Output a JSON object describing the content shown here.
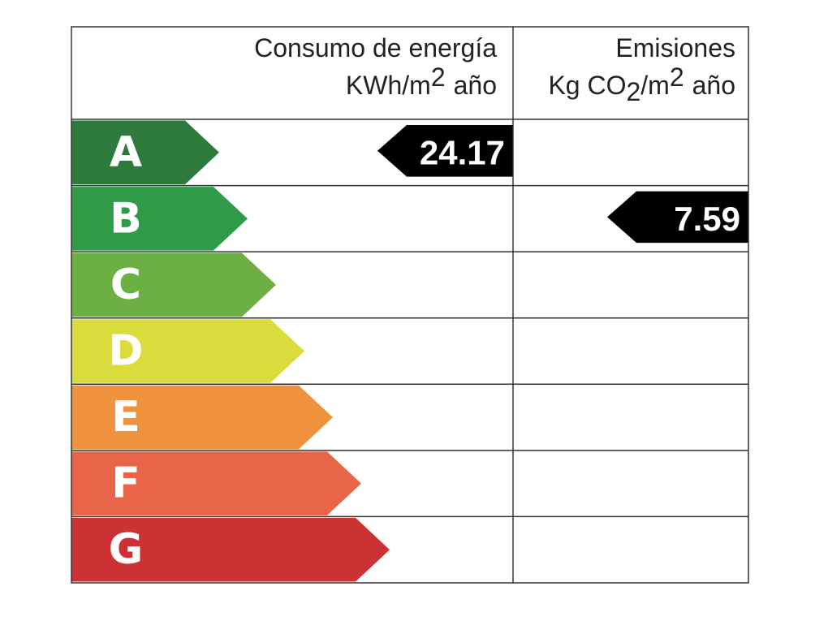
{
  "header": {
    "consumption": {
      "line1": "Consumo de energía",
      "line2": [
        "KWh/m",
        "2",
        "año"
      ]
    },
    "emissions": {
      "line1": "Emisiones",
      "line2": [
        "Kg CO",
        "2",
        "/m",
        "2",
        "año"
      ]
    }
  },
  "classes": [
    {
      "letter": "A",
      "color": "#2e7a3c"
    },
    {
      "letter": "B",
      "color": "#2f9a47"
    },
    {
      "letter": "C",
      "color": "#6cb043"
    },
    {
      "letter": "D",
      "color": "#d9dc3a"
    },
    {
      "letter": "E",
      "color": "#f0913e"
    },
    {
      "letter": "F",
      "color": "#e8654a"
    },
    {
      "letter": "G",
      "color": "#cc3234"
    }
  ],
  "consumption": {
    "value": 24.17,
    "class": "A"
  },
  "emissions": {
    "value": 7.59,
    "class": "B"
  }
}
